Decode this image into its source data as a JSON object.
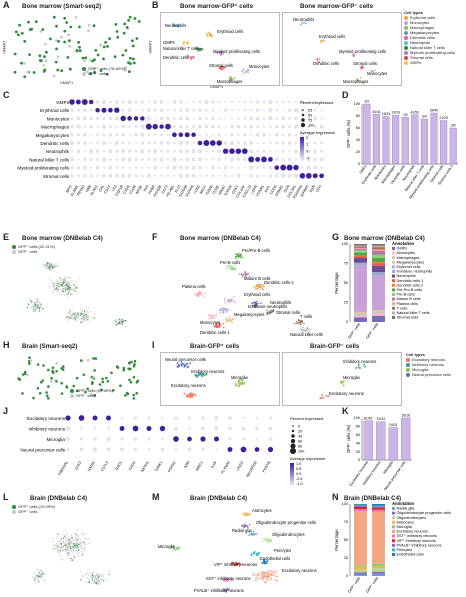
{
  "panels": {
    "A": {
      "label": "A",
      "title": "Bone marrow (Smart-seq2)",
      "legend": [
        "GFP⁺ cells (78.89%)",
        "GFP⁻ cells"
      ]
    },
    "B": {
      "label": "B",
      "title_left": "Bone marrow-GFP⁺ cells",
      "title_right": "Bone marrow-GFP⁻ cells",
      "left_labels": [
        "Neutrophils",
        "Erythroid cells",
        "GMPs",
        "Natural killer T cells",
        "Myeloid proliferating cells",
        "Dendritic cells",
        "Stromal cells",
        "Monocytes",
        "Macrophages"
      ],
      "right_labels": [
        "Neutrophils",
        "Erythroid cells",
        "Myeloid proliferating cells",
        "Dendritic cells",
        "Stromal cells",
        "Monocytes",
        "Macrophages"
      ],
      "legend_title": "Cell types",
      "legend": [
        {
          "name": "Erythroid cells",
          "color": "#e8a33d"
        },
        {
          "name": "Monocytes",
          "color": "#c9a0dc"
        },
        {
          "name": "Macrophages",
          "color": "#8fbc5a"
        },
        {
          "name": "Megakaryocytes",
          "color": "#6a8fd6"
        },
        {
          "name": "Dendritic cells",
          "color": "#e55b8a"
        },
        {
          "name": "Neutrophils",
          "color": "#5bc0de"
        },
        {
          "name": "Natural killer T cells",
          "color": "#3a7d44"
        },
        {
          "name": "Myeloid proliferating cells",
          "color": "#b07ac8"
        },
        {
          "name": "Stromal cells",
          "color": "#d64545"
        },
        {
          "name": "GMPs",
          "color": "#f2c14e"
        }
      ]
    },
    "C": {
      "label": "C",
      "rows": [
        "GMPs",
        "Erythroid cells",
        "Monocytes",
        "Macrophages",
        "Megakaryocytes",
        "Dendritic cells",
        "Neutrophils",
        "Natural killer T cells",
        "Myeloid proliferating cells",
        "Stromal cells"
      ],
      "genes": [
        "MPO",
        "ELANE",
        "PRTN3",
        "HBB",
        "ALAS2",
        "CA1",
        "CD14",
        "LYZ",
        "CSF1R",
        "C1QA",
        "C1QB",
        "APOE",
        "PF4",
        "PPBP",
        "ITGA2B",
        "CD74",
        "H2-AB1",
        "FLT3",
        "S100A8",
        "S100A9",
        "LCN2",
        "NKG7",
        "GZMA",
        "CD3E",
        "MKI67",
        "TOP2A",
        "CDK1",
        "COL1A1",
        "CXCL12",
        "LEPR",
        "VCAM1",
        "KITL",
        "CDH2",
        "SPARC",
        "DCN",
        "COL3A1",
        "PDGFRA",
        "IGFBP5",
        "GSN",
        "CFH"
      ],
      "size_title": "Percent expressed",
      "size_ticks": [
        "25",
        "50",
        "75",
        "100"
      ],
      "color_title": "Average expression",
      "color_ticks": [
        "2",
        "1",
        "0",
        "-1"
      ]
    },
    "D": {
      "label": "D",
      "ylabel": "GFP⁺ cells (%)",
      "yticks": [
        "0",
        "20",
        "40",
        "60",
        "80",
        "100"
      ],
      "bars": [
        {
          "cat": "GMPs",
          "value": 100,
          "label": "2/2"
        },
        {
          "cat": "Erythroid cells",
          "value": 82.9,
          "label": "34/41"
        },
        {
          "cat": "Monocytes",
          "value": 79.2,
          "label": "19/24"
        },
        {
          "cat": "Macrophages",
          "value": 81.3,
          "label": "13/16"
        },
        {
          "cat": "Dendritic cells",
          "value": 77.8,
          "label": "7/9"
        },
        {
          "cat": "Neutrophils",
          "value": 82.0,
          "label": "41/50"
        },
        {
          "cat": "Natural killer T cells",
          "value": 75.0,
          "label": "3/4"
        },
        {
          "cat": "Myeloid proliferating cells",
          "value": 85.0,
          "label": "34/40"
        },
        {
          "cat": "Stromal cells",
          "value": 72.4,
          "label": "21/29"
        },
        {
          "cat": "Stromal cells 2",
          "value": 60.0,
          "label": "3/5"
        }
      ]
    },
    "E": {
      "label": "E",
      "title": "Bone marrow (DNBelab C4)",
      "legend": [
        "GFP⁺ cells (32.41%)",
        "GFP⁻ cells"
      ]
    },
    "F": {
      "label": "F",
      "title": "Bone marrow (DNBelab C4)",
      "labels": [
        "Pre/Pro-B cells",
        "Pre-B cells",
        "Mature B cells",
        "Dendritic cells 2",
        "Plasma cells",
        "Erythroid cells",
        "Immature neutrophils",
        "Megakaryocytes",
        "Neutrophils",
        "Stromal cells",
        "Monocytes",
        "Dendritic cells 1",
        "T cells",
        "Natural killer cells"
      ]
    },
    "G": {
      "label": "G",
      "title": "Bone marrow (DNBelab C4)",
      "ylabel": "Percentage",
      "yticks": [
        "0",
        "25",
        "50",
        "75",
        "100"
      ],
      "xcats": [
        "GFP⁺ cells",
        "GFP⁻ cells"
      ],
      "legend_title": "Annotation",
      "legend": [
        {
          "name": "GMPs",
          "color": "#7b6ab6"
        },
        {
          "name": "Monocytes",
          "color": "#f7b6d2"
        },
        {
          "name": "Macrophages",
          "color": "#c7c7c7"
        },
        {
          "name": "Megakaryocytes",
          "color": "#e2c48f"
        },
        {
          "name": "Erythroid cells",
          "color": "#c8a2d6"
        },
        {
          "name": "Immature neutrophils",
          "color": "#9aa8d9"
        },
        {
          "name": "Neutrophils",
          "color": "#6a4c93"
        },
        {
          "name": "Dendritic cells 1",
          "color": "#e45756"
        },
        {
          "name": "Dendritic cells 2",
          "color": "#f58518"
        },
        {
          "name": "Pre-Pro-B cells",
          "color": "#54a24b"
        },
        {
          "name": "Pre-B cells",
          "color": "#88d27a"
        },
        {
          "name": "Mature B cells",
          "color": "#b279a2"
        },
        {
          "name": "Plasma cells",
          "color": "#ff9da6"
        },
        {
          "name": "T cells",
          "color": "#9d755d"
        },
        {
          "name": "Natural killer T cells",
          "color": "#bab0ac"
        },
        {
          "name": "Stromal cells",
          "color": "#79706e"
        }
      ],
      "stacks": [
        [
          6,
          2,
          3,
          2,
          60,
          3,
          6,
          2,
          1,
          4,
          3,
          2,
          1,
          2,
          1,
          2
        ],
        [
          8,
          3,
          2,
          2,
          45,
          4,
          8,
          3,
          2,
          5,
          4,
          5,
          2,
          3,
          2,
          2
        ]
      ]
    },
    "H": {
      "label": "H",
      "title": "Brain (Smart-seq2)",
      "legend": [
        "GFP⁺ cells (90.59%)",
        "GFP⁻ cells"
      ]
    },
    "I": {
      "label": "I",
      "title_left": "Brain-GFP⁺ cells",
      "title_right": "Brain-GFP⁻ cells",
      "left_labels": [
        "Neural precursor cells",
        "Inhibitory neurons",
        "Microglia",
        "Excitatory neurons"
      ],
      "right_labels": [
        "Inhibitory neurons",
        "Microglia",
        "Excitatory neurons"
      ],
      "legend_title": "Cell types",
      "legend": [
        {
          "name": "Excitatory neurons",
          "color": "#e8765a"
        },
        {
          "name": "Inhibitory neurons",
          "color": "#3a9b9b"
        },
        {
          "name": "Microglia",
          "color": "#8bc34a"
        },
        {
          "name": "Neural precursor cells",
          "color": "#5c6bc0"
        }
      ]
    },
    "J": {
      "label": "J",
      "rows": [
        "Excitatory neurons",
        "Inhibitory neurons",
        "Microglia",
        "Neural precursor cells"
      ],
      "genes": [
        "FAM19A1",
        "CUX2",
        "SATB2",
        "FSTL5",
        "GAD1",
        "GAD2",
        "NXPH1",
        "GRIK1",
        "PTPRC",
        "A2M",
        "MRC1",
        "IL1B",
        "PLXNA4",
        "LRIG3",
        "NEUROD6",
        "POSTN"
      ],
      "size_title": "Percent expressed",
      "size_ticks": [
        "0",
        "20",
        "40",
        "60",
        "80",
        "100"
      ],
      "color_title": "Average expression",
      "color_ticks": [
        "1.0",
        "0.5",
        "0.0",
        "-0.5",
        "-1.0"
      ]
    },
    "K": {
      "label": "K",
      "ylabel": "GFP⁺ cells (%)",
      "yticks": [
        "0",
        "20",
        "40",
        "60",
        "80",
        "100"
      ],
      "bars": [
        {
          "cat": "Excitatory neurons",
          "value": 93.1,
          "label": "81/87"
        },
        {
          "cat": "Inhibitory neurons",
          "value": 91.2,
          "label": "31/34"
        },
        {
          "cat": "Microglia",
          "value": 77.4,
          "label": "24/31"
        },
        {
          "cat": "Neural precursor cells",
          "value": 100,
          "label": "18/18"
        }
      ]
    },
    "L": {
      "label": "L",
      "title": "Brain (DNBelab C4)",
      "legend": [
        "GFP⁺ cells (19.09%)",
        "GFP⁻ cells"
      ]
    },
    "M": {
      "label": "M",
      "title": "Brain (DNBelab C4)",
      "labels": [
        "Astrocytes",
        "Oligodendrocyte progenitor cells",
        "Radial glia",
        "Oligodendrocytes",
        "Microglia",
        "Pericytes",
        "Endothelial cells",
        "VIP⁺ inhibitory neurons",
        "Excitatory neurons",
        "SST⁺ inhibitory neurons",
        "PVALB⁺ inhibitory neurons"
      ]
    },
    "N": {
      "label": "N",
      "title": "Brain (DNBelab C4)",
      "ylabel": "Percentage",
      "yticks": [
        "0",
        "25",
        "50",
        "75",
        "100"
      ],
      "xcats": [
        "GFP⁺ cells",
        "GFP⁻ cells"
      ],
      "legend_title": "Annotation",
      "legend": [
        {
          "name": "Radial glia",
          "color": "#6a9fd6"
        },
        {
          "name": "Oligodendrocyte progenitor cells",
          "color": "#8e6bbf"
        },
        {
          "name": "Oligodendrocytes",
          "color": "#b5d88a"
        },
        {
          "name": "Astrocytes",
          "color": "#f2b84b"
        },
        {
          "name": "Microglia",
          "color": "#7fc97f"
        },
        {
          "name": "Excitatory neurons",
          "color": "#f4a582"
        },
        {
          "name": "SST⁺ inhibitory neurons",
          "color": "#e377c2"
        },
        {
          "name": "VIP⁺ inhibitory neurons",
          "color": "#d62728"
        },
        {
          "name": "PVALB⁺ inhibitory neurons",
          "color": "#9467bd"
        },
        {
          "name": "Pericytes",
          "color": "#17becf"
        },
        {
          "name": "Endothelial cells",
          "color": "#1f77b4"
        }
      ],
      "stacks": [
        [
          2,
          3,
          4,
          4,
          2,
          75,
          3,
          3,
          2,
          1,
          1
        ],
        [
          3,
          3,
          5,
          3,
          3,
          72,
          3,
          3,
          2,
          1,
          2
        ]
      ]
    }
  },
  "axes": {
    "umap1": "UMAP1",
    "umap2": "UMAP2"
  },
  "colors": {
    "gfp_pos": "#2e8b3a",
    "gfp_neg": "#c8c8c8",
    "bar": "#cbb4e6",
    "dot_hi": "#3b1f9e",
    "dot_lo": "#e8e4f5"
  },
  "chart_data": [
    {
      "type": "bar",
      "title": "",
      "categories": [
        "GMPs",
        "Erythroid cells",
        "Monocytes",
        "Macrophages",
        "Dendritic cells",
        "Neutrophils",
        "Natural killer T cells",
        "Myeloid proliferating cells",
        "Stromal cells",
        "Stromal cells 2"
      ],
      "values": [
        100,
        82.9,
        79.2,
        81.3,
        77.8,
        82.0,
        75.0,
        85.0,
        72.4,
        60.0
      ],
      "ylabel": "GFP⁺ cells (%)",
      "ylim": [
        0,
        100
      ]
    },
    {
      "type": "bar",
      "title": "",
      "categories": [
        "Excitatory neurons",
        "Inhibitory neurons",
        "Microglia",
        "Neural precursor cells"
      ],
      "values": [
        93.1,
        91.2,
        77.4,
        100
      ],
      "ylabel": "GFP⁺ cells (%)",
      "ylim": [
        0,
        100
      ]
    }
  ]
}
